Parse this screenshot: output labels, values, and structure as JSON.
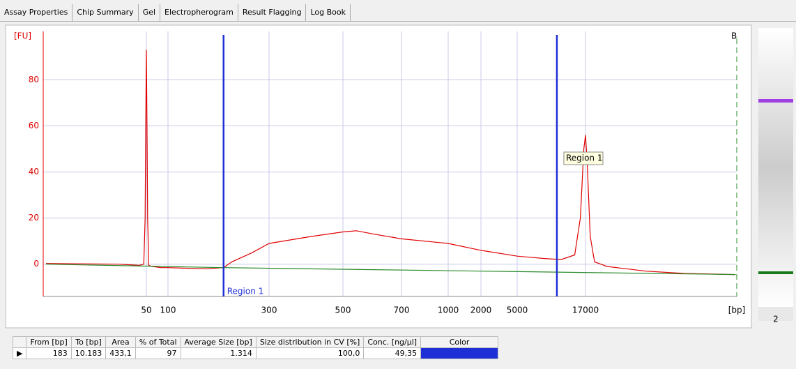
{
  "tabs": [
    "Assay Properties",
    "Chip Summary",
    "Gel",
    "Electropherogram",
    "Result Flagging",
    "Log Book"
  ],
  "chart_data": {
    "type": "line",
    "y_label": "[FU]",
    "x_label": "[bp]",
    "corner_label": "B",
    "tooltip": "Region 1",
    "ylim": [
      -14,
      101
    ],
    "yticks": [
      0,
      20,
      40,
      60,
      80
    ],
    "xticks": [
      50,
      100,
      300,
      500,
      700,
      1000,
      2000,
      5000,
      17000
    ],
    "grid": true,
    "series": [
      {
        "color": "#e00000",
        "x": [
          2,
          20,
          40,
          46,
          48,
          49,
          50,
          51,
          52,
          54,
          60,
          80,
          100,
          150,
          183,
          200,
          250,
          300,
          400,
          500,
          540,
          600,
          700,
          1000,
          2000,
          5000,
          8000,
          11000,
          14000,
          15500,
          16500,
          17000,
          17500,
          18500,
          20000,
          25000,
          50000,
          100000,
          250000
        ],
        "y": [
          0.3,
          0,
          -0.5,
          0,
          20,
          60,
          93,
          60,
          20,
          -0.5,
          -1,
          -1.5,
          -1.5,
          -2,
          -1.5,
          1,
          5,
          9,
          12,
          14,
          14.5,
          13,
          11,
          9,
          6,
          3.5,
          2.5,
          2,
          4,
          20,
          50,
          56,
          45,
          12,
          1,
          -1,
          -3,
          -4,
          -4.5
        ]
      },
      {
        "color": "#2a8a2a",
        "x": [
          2,
          183,
          250000
        ],
        "y": [
          0,
          -1.5,
          -4.5
        ]
      }
    ],
    "regions": [
      {
        "label": "Region 1",
        "from": 183,
        "to": 10183,
        "color": "#1f2fd6"
      }
    ]
  },
  "gel": {
    "lane": "2"
  },
  "table": {
    "headers": [
      "From [bp]",
      "To [bp]",
      "Area",
      "% of Total",
      "Average Size [bp]",
      "Size distribution in CV [%]",
      "Conc. [ng/µl]",
      "Color"
    ],
    "rows": [
      [
        "183",
        "10.183",
        "433,1",
        "97",
        "1.314",
        "100,0",
        "49,35"
      ]
    ]
  }
}
